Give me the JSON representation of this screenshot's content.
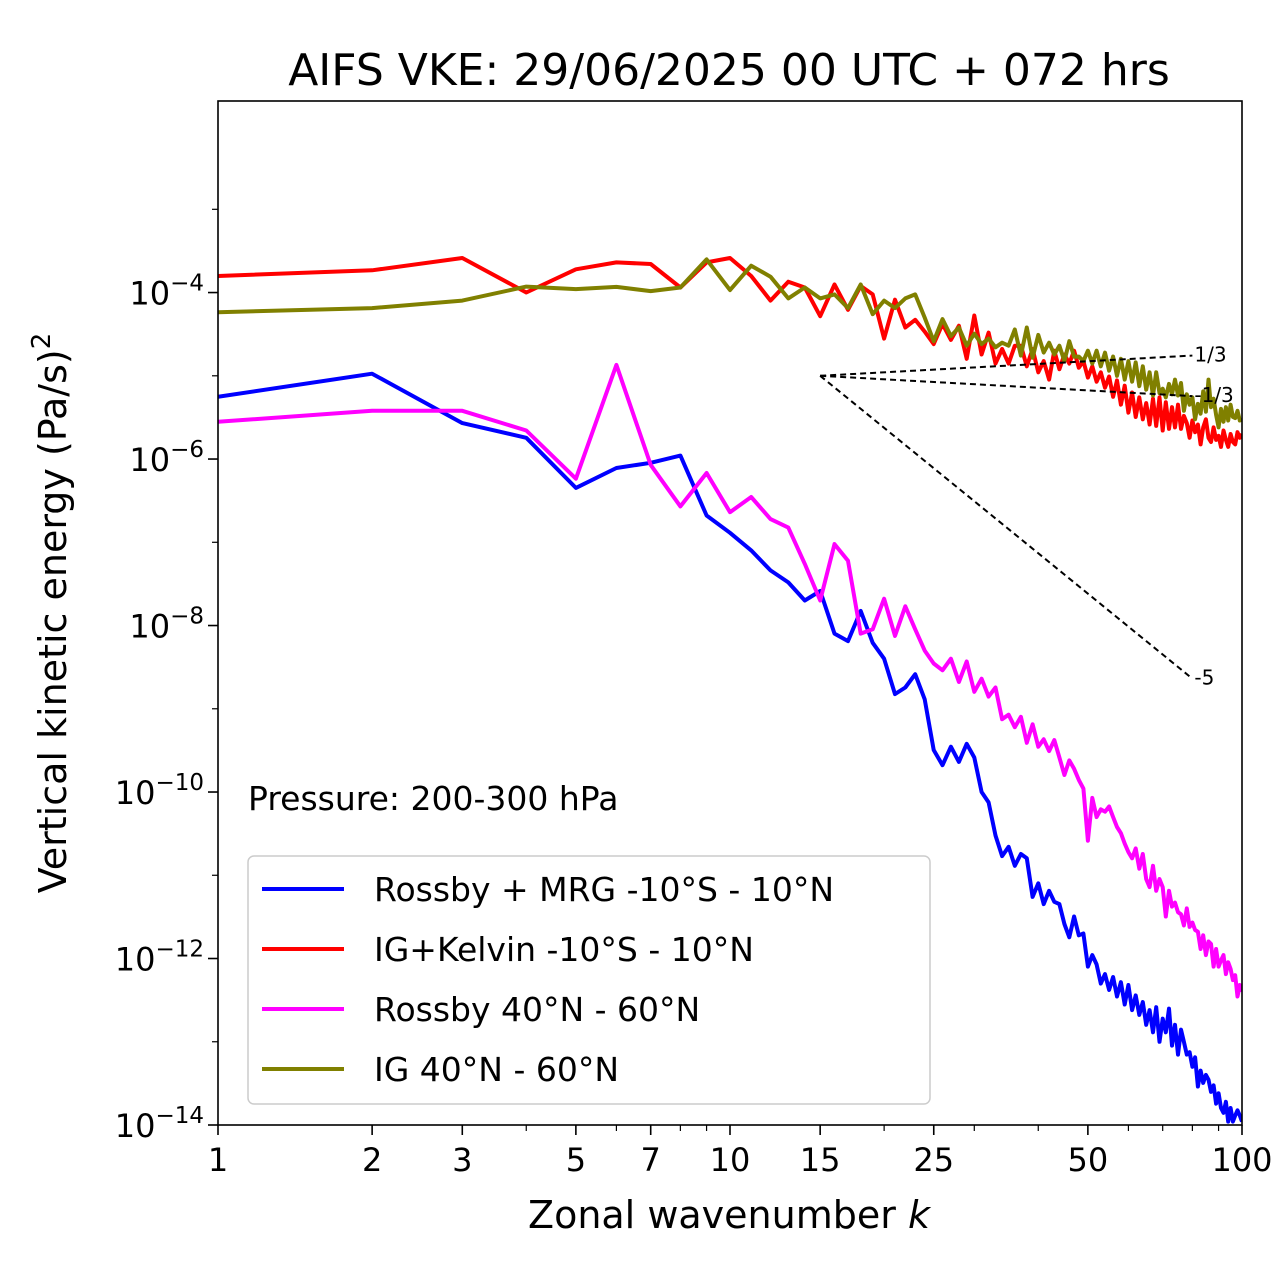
{
  "chart_data": {
    "type": "line",
    "title": "AIFS VKE: 29/06/2025 00 UTC + 072 hrs",
    "xlabel": "Zonal wavenumber",
    "xlabel_var": "k",
    "ylabel": "Vertical kinetic energy (Pa/s)",
    "ylabel_exp": "2",
    "xscale": "log",
    "yscale": "log",
    "xlim": [
      1,
      100
    ],
    "ylim": [
      1e-14,
      0.02
    ],
    "x_ticks": [
      1,
      2,
      3,
      5,
      7,
      10,
      15,
      25,
      50,
      100
    ],
    "x_tick_labels": [
      "1",
      "2",
      "3",
      "5",
      "7",
      "10",
      "15",
      "25",
      "50",
      "100"
    ],
    "y_ticks": [
      -14,
      -12,
      -10,
      -8,
      -6,
      -4
    ],
    "y_tick_base": "10",
    "y_tick_exponents": [
      "−14",
      "−12",
      "−10",
      "−8",
      "−6",
      "−4"
    ],
    "annotation": "Pressure: 200-300 hPa",
    "legend_position": "bottom-left",
    "reference_lines": [
      {
        "slope_label": "1/3",
        "x": [
          15,
          80
        ],
        "y": [
          1e-05,
          1.75e-05
        ]
      },
      {
        "slope_label": "-1/3",
        "x": [
          15,
          80
        ],
        "y": [
          1e-05,
          5.7e-06
        ]
      },
      {
        "slope_label": "-5",
        "x": [
          15,
          80
        ],
        "y": [
          1e-05,
          2.3e-09
        ]
      }
    ],
    "series": [
      {
        "name": "Rossby + MRG -10°S - 10°N",
        "color": "#0000ff",
        "x": [
          1,
          2,
          3,
          4,
          5,
          6,
          7,
          8,
          9,
          10,
          11,
          12,
          13,
          14,
          15,
          16,
          17,
          18,
          19,
          20,
          21,
          22,
          23,
          24,
          25,
          26,
          27,
          28,
          29,
          30,
          31,
          32,
          33,
          34,
          35,
          36,
          37,
          38,
          39,
          40,
          41,
          42,
          43,
          44,
          45,
          46,
          47,
          48,
          49,
          50,
          51,
          52,
          53,
          54,
          55,
          56,
          57,
          58,
          59,
          60,
          61,
          62,
          63,
          64,
          65,
          66,
          67,
          68,
          69,
          70,
          71,
          72,
          73,
          74,
          75,
          76,
          77,
          78,
          79,
          80,
          81,
          82,
          83,
          84,
          85,
          86,
          87,
          88,
          89,
          90,
          91,
          92,
          93,
          94,
          95,
          96,
          97,
          98,
          99,
          100
        ],
        "y": [
          5.6e-06,
          1.06e-05,
          2.7e-06,
          1.8e-06,
          4.5e-07,
          7.8e-07,
          9e-07,
          1.1e-06,
          2.1e-07,
          1.3e-07,
          8e-08,
          4.6e-08,
          3.3e-08,
          2e-08,
          2.6e-08,
          8e-09,
          6.5e-09,
          1.5e-08,
          6.2e-09,
          4e-09,
          1.5e-09,
          1.8e-09,
          2.6e-09,
          1.3e-09,
          3.2e-10,
          2.1e-10,
          3.5e-10,
          2.3e-10,
          3.8e-10,
          2.6e-10,
          1e-10,
          7.5e-11,
          3e-11,
          1.7e-11,
          2.2e-11,
          1.3e-11,
          1.8e-11,
          1.6e-11,
          5.5e-12,
          8e-12,
          4.5e-12,
          6.5e-12,
          4.8e-12,
          4.5e-12,
          2.6e-12,
          1.8e-12,
          3.2e-12,
          1.9e-12,
          2e-12,
          8e-13,
          1.1e-12,
          8.5e-13,
          5e-13,
          6.5e-13,
          4.2e-13,
          6e-13,
          3.5e-13,
          5.2e-13,
          2.8e-13,
          4.8e-13,
          2.4e-13,
          3.6e-13,
          2.1e-13,
          3e-13,
          1.6e-13,
          2.4e-13,
          1.3e-13,
          2.6e-13,
          1e-13,
          1.9e-13,
          1.3e-13,
          2.5e-13,
          9e-14,
          1.6e-13,
          7e-14,
          1.4e-13,
          1e-13,
          7e-14,
          7.5e-14,
          5e-14,
          6.5e-14,
          2.9e-14,
          4.5e-14,
          3.2e-14,
          4e-14,
          3.5e-14,
          2.5e-14,
          3e-14,
          1.8e-14,
          2.4e-14,
          1.6e-14,
          1.4e-14,
          1.9e-14,
          1.1e-14,
          1.6e-14,
          1.1e-14,
          1.3e-14,
          1.5e-14,
          1.3e-14,
          1.1e-14
        ]
      },
      {
        "name": "IG+Kelvin -10°S - 10°N",
        "color": "#ff0000",
        "x": [
          1,
          2,
          3,
          4,
          5,
          6,
          7,
          8,
          9,
          10,
          11,
          12,
          13,
          14,
          15,
          16,
          17,
          18,
          19,
          20,
          21,
          22,
          23,
          24,
          25,
          26,
          27,
          28,
          29,
          30,
          31,
          32,
          33,
          34,
          35,
          36,
          37,
          38,
          39,
          40,
          41,
          42,
          43,
          44,
          45,
          46,
          47,
          48,
          49,
          50,
          51,
          52,
          53,
          54,
          55,
          56,
          57,
          58,
          59,
          60,
          61,
          62,
          63,
          64,
          65,
          66,
          67,
          68,
          69,
          70,
          71,
          72,
          73,
          74,
          75,
          76,
          77,
          78,
          79,
          80,
          81,
          82,
          83,
          84,
          85,
          86,
          87,
          88,
          89,
          90,
          91,
          92,
          93,
          94,
          95,
          96,
          97,
          98,
          99,
          100
        ],
        "y": [
          0.000158,
          0.000185,
          0.00026,
          0.0001,
          0.00019,
          0.00023,
          0.00022,
          0.000115,
          0.00023,
          0.00026,
          0.000158,
          8e-05,
          0.000135,
          0.000115,
          5.2e-05,
          0.000125,
          6.2e-05,
          0.00012,
          9.5e-05,
          2.8e-05,
          8.2e-05,
          3.8e-05,
          4.7e-05,
          3.4e-05,
          2.4e-05,
          4.2e-05,
          2.7e-05,
          4e-05,
          1.6e-05,
          5.3e-05,
          1.8e-05,
          3.3e-05,
          1.4e-05,
          2.1e-05,
          1.4e-05,
          2.3e-05,
          2.3e-05,
          1.3e-05,
          2.1e-05,
          1.1e-05,
          1.5e-05,
          9e-06,
          2e-05,
          1.2e-05,
          1.8e-05,
          1.4e-05,
          2e-05,
          1.25e-05,
          1.5e-05,
          9.5e-06,
          1.3e-05,
          8.5e-06,
          1.1e-05,
          7.2e-06,
          9.8e-06,
          5.6e-06,
          8.8e-06,
          4.5e-06,
          7.6e-06,
          3.6e-06,
          6.3e-06,
          3.2e-06,
          5.5e-06,
          3e-06,
          4.7e-06,
          2.6e-06,
          5.3e-06,
          2.5e-06,
          5.5e-06,
          2.2e-06,
          4.8e-06,
          2.3e-06,
          4.2e-06,
          2.4e-06,
          4.5e-06,
          2.3e-06,
          3.3e-06,
          2.7e-06,
          1.8e-06,
          2.9e-06,
          2.1e-06,
          2.6e-06,
          1.5e-06,
          2.4e-06,
          3e-06,
          1.8e-06,
          1.6e-06,
          2.4e-06,
          1.7e-06,
          1.9e-06,
          1.4e-06,
          2.2e-06,
          1.7e-06,
          1.4e-06,
          2e-06,
          1.6e-06,
          1.5e-06,
          2.1e-06,
          1.8e-06,
          2e-06
        ]
      },
      {
        "name": "Rossby 40°N - 60°N",
        "color": "#ff00ff",
        "x": [
          1,
          2,
          3,
          4,
          5,
          6,
          7,
          8,
          9,
          10,
          11,
          12,
          13,
          14,
          15,
          16,
          17,
          18,
          19,
          20,
          21,
          22,
          23,
          24,
          25,
          26,
          27,
          28,
          29,
          30,
          31,
          32,
          33,
          34,
          35,
          36,
          37,
          38,
          39,
          40,
          41,
          42,
          43,
          44,
          45,
          46,
          47,
          48,
          49,
          50,
          51,
          52,
          53,
          54,
          55,
          56,
          57,
          58,
          59,
          60,
          61,
          62,
          63,
          64,
          65,
          66,
          67,
          68,
          69,
          70,
          71,
          72,
          73,
          74,
          75,
          76,
          77,
          78,
          79,
          80,
          81,
          82,
          83,
          84,
          85,
          86,
          87,
          88,
          89,
          90,
          91,
          92,
          93,
          94,
          95,
          96,
          97,
          98,
          99,
          100
        ],
        "y": [
          2.8e-06,
          3.8e-06,
          3.8e-06,
          2.2e-06,
          5.8e-07,
          1.35e-05,
          8.5e-07,
          2.7e-07,
          6.8e-07,
          2.3e-07,
          3.5e-07,
          1.9e-07,
          1.5e-07,
          5.5e-08,
          2e-08,
          9.5e-08,
          6e-08,
          8e-09,
          9e-09,
          2.1e-08,
          7.5e-09,
          1.7e-08,
          9e-09,
          5e-09,
          3.5e-09,
          2.9e-09,
          4e-09,
          2.1e-09,
          3.7e-09,
          1.6e-09,
          2.3e-09,
          1.4e-09,
          1.8e-09,
          7.5e-10,
          8.5e-10,
          6e-10,
          8e-10,
          3.9e-10,
          6.5e-10,
          3.5e-10,
          4.3e-10,
          3.1e-10,
          4.2e-10,
          2.6e-10,
          1.6e-10,
          2.4e-10,
          1.9e-10,
          1.4e-10,
          1.1e-10,
          2.6e-11,
          8.5e-11,
          5e-11,
          6.2e-11,
          5.8e-11,
          6.7e-11,
          5e-11,
          3.8e-11,
          3.2e-11,
          2.4e-11,
          1.9e-11,
          1.6e-11,
          2.1e-11,
          1.2e-11,
          1.8e-11,
          9e-12,
          7.2e-12,
          1.3e-11,
          6.5e-12,
          9e-12,
          7.2e-12,
          3.2e-12,
          6.5e-12,
          4.2e-12,
          4.7e-12,
          3.6e-12,
          3.4e-12,
          2.5e-12,
          4e-12,
          2.4e-12,
          2.7e-12,
          2.2e-12,
          2.1e-12,
          1.3e-12,
          1.9e-12,
          1.1e-12,
          1.6e-12,
          1.5e-12,
          8e-13,
          1.3e-12,
          8e-13,
          9.5e-13,
          1.1e-12,
          6.5e-13,
          9e-13,
          7.5e-13,
          5.5e-13,
          6.3e-13,
          3.5e-13,
          4.8e-13,
          4e-13
        ]
      },
      {
        "name": "IG 40°N - 60°N",
        "color": "#808000",
        "x": [
          1,
          2,
          3,
          4,
          5,
          6,
          7,
          8,
          9,
          10,
          11,
          12,
          13,
          14,
          15,
          16,
          17,
          18,
          19,
          20,
          21,
          22,
          23,
          24,
          25,
          26,
          27,
          28,
          29,
          30,
          31,
          32,
          33,
          34,
          35,
          36,
          37,
          38,
          39,
          40,
          41,
          42,
          43,
          44,
          45,
          46,
          47,
          48,
          49,
          50,
          51,
          52,
          53,
          54,
          55,
          56,
          57,
          58,
          59,
          60,
          61,
          62,
          63,
          64,
          65,
          66,
          67,
          68,
          69,
          70,
          71,
          72,
          73,
          74,
          75,
          76,
          77,
          78,
          79,
          80,
          81,
          82,
          83,
          84,
          85,
          86,
          87,
          88,
          89,
          90,
          91,
          92,
          93,
          94,
          95,
          96,
          97,
          98,
          99,
          100
        ],
        "y": [
          5.8e-05,
          6.5e-05,
          8e-05,
          0.000118,
          0.00011,
          0.000117,
          0.000104,
          0.000115,
          0.00025,
          0.000107,
          0.00021,
          0.000155,
          8.5e-05,
          0.000115,
          8.5e-05,
          9.5e-05,
          6.5e-05,
          0.000125,
          5.5e-05,
          8e-05,
          6.5e-05,
          8.5e-05,
          9.5e-05,
          5e-05,
          2.6e-05,
          4.8e-05,
          3e-05,
          3.8e-05,
          2.3e-05,
          3.2e-05,
          2.4e-05,
          2.8e-05,
          2.2e-05,
          2.5e-05,
          2.3e-05,
          3.6e-05,
          1.75e-05,
          3.8e-05,
          1.65e-05,
          3.1e-05,
          1.9e-05,
          2.5e-05,
          1.8e-05,
          2.3e-05,
          1.5e-05,
          2.6e-05,
          1.7e-05,
          1.7e-05,
          1.5e-05,
          2e-05,
          1.4e-05,
          2e-05,
          1.3e-05,
          1.9e-05,
          1.15e-05,
          1.7e-05,
          1e-05,
          1.6e-05,
          9e-06,
          1.5e-05,
          8.5e-06,
          1.45e-05,
          7.5e-06,
          1.3e-05,
          6.8e-06,
          1.1e-05,
          5.8e-06,
          1.1e-05,
          6.2e-06,
          7e-06,
          5.5e-06,
          8e-06,
          6e-06,
          9e-06,
          5.8e-06,
          8.2e-06,
          3.8e-06,
          6e-06,
          4.5e-06,
          5.5e-06,
          3e-06,
          4.6e-06,
          3.5e-06,
          6.5e-06,
          3.7e-06,
          9e-06,
          4.2e-06,
          5.3e-06,
          3.4e-06,
          2.4e-06,
          4e-06,
          2.8e-06,
          4.2e-06,
          2.9e-06,
          4.5e-06,
          3.2e-06,
          3.1e-06,
          3.8e-06,
          2.9e-06,
          3e-06
        ]
      }
    ]
  }
}
